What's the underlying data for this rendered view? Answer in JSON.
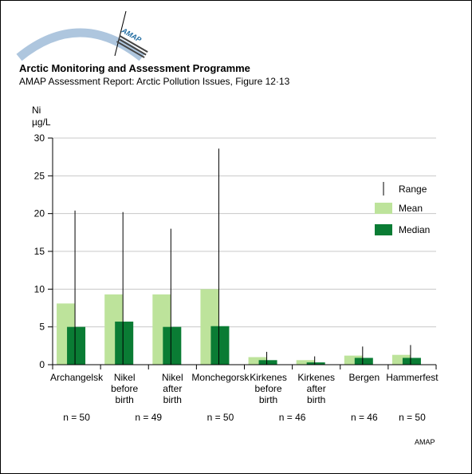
{
  "header": {
    "title": "Arctic Monitoring and Assessment Programme",
    "subtitle": "AMAP Assessment Report: Arctic Pollution Issues, Figure 12·13",
    "logo_text": "AMAP"
  },
  "footer": {
    "credit": "AMAP"
  },
  "colors": {
    "mean": "#bde39b",
    "median": "#0a7c34",
    "range": "#000000",
    "grid": "#c8c8c8"
  },
  "chart_data": {
    "type": "bar",
    "ylabel_lines": [
      "Ni",
      "µg/L"
    ],
    "ylim": [
      0,
      30
    ],
    "yticks": [
      0,
      5,
      10,
      15,
      20,
      25,
      30
    ],
    "grid": true,
    "legend_position": "right",
    "legend": {
      "range": "Range",
      "mean": "Mean",
      "median": "Median"
    },
    "categories": [
      [
        "Archangelsk"
      ],
      [
        "Nikel",
        "before",
        "birth"
      ],
      [
        "Nikel",
        "after",
        "birth"
      ],
      [
        "Monchegorsk"
      ],
      [
        "Kirkenes",
        "before",
        "birth"
      ],
      [
        "Kirkenes",
        "after",
        "birth"
      ],
      [
        "Bergen"
      ],
      [
        "Hammerfest"
      ]
    ],
    "series": [
      {
        "name": "Mean",
        "values": [
          8.1,
          9.3,
          9.3,
          10.0,
          1.0,
          0.6,
          1.2,
          1.3
        ]
      },
      {
        "name": "Median",
        "values": [
          5.0,
          5.7,
          5.0,
          5.1,
          0.6,
          0.3,
          0.9,
          0.9
        ]
      }
    ],
    "range_max": [
      20.4,
      20.2,
      18.0,
      28.6,
      1.7,
      1.1,
      2.4,
      2.6
    ],
    "n_labels": [
      {
        "text": "n = 50",
        "span": [
          0,
          0
        ]
      },
      {
        "text": "n = 49",
        "span": [
          1,
          2
        ]
      },
      {
        "text": "n = 50",
        "span": [
          3,
          3
        ]
      },
      {
        "text": "n = 46",
        "span": [
          4,
          5
        ]
      },
      {
        "text": "n = 46",
        "span": [
          6,
          6
        ]
      },
      {
        "text": "n = 50",
        "span": [
          7,
          7
        ]
      }
    ]
  }
}
